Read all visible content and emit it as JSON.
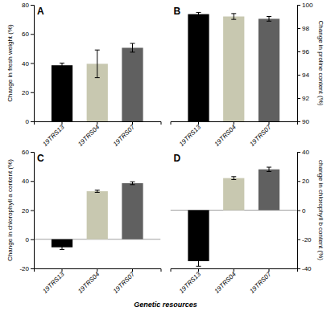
{
  "chart_data": [
    {
      "type": "bar",
      "title": "A",
      "categories": [
        "19TRS13",
        "19TRS04",
        "19TRS07"
      ],
      "values": [
        38.5,
        39.5,
        50.5
      ],
      "errors": [
        1.5,
        9.5,
        3.0
      ],
      "colors": [
        "#000000",
        "#c8c8b0",
        "#606060"
      ],
      "ylabel": "Change in fresh weight (%)",
      "ylim": [
        0,
        80
      ],
      "yticks": [
        0,
        20,
        40,
        60,
        80
      ],
      "grid": false
    },
    {
      "type": "bar",
      "title": "B",
      "categories": [
        "19TRS13",
        "19TRS04",
        "19TRS07"
      ],
      "values": [
        99.2,
        99.0,
        98.8
      ],
      "errors": [
        0.15,
        0.25,
        0.2
      ],
      "colors": [
        "#000000",
        "#c8c8b0",
        "#606060"
      ],
      "ylabel": "Change in proline content (%)",
      "ylim": [
        90,
        100
      ],
      "yticks": [
        90,
        92,
        94,
        96,
        98,
        100
      ],
      "grid": false
    },
    {
      "type": "bar",
      "title": "C",
      "categories": [
        "19TRS13",
        "19TRS04",
        "19TRS07"
      ],
      "values": [
        -5.5,
        33.0,
        38.5
      ],
      "errors": [
        1.5,
        0.8,
        1.0
      ],
      "colors": [
        "#000000",
        "#c8c8b0",
        "#606060"
      ],
      "ylabel": "Change in chlorophyll a content (%)",
      "xlabel": "Genetic resources",
      "ylim": [
        -20,
        60
      ],
      "yticks": [
        -20,
        0,
        20,
        40,
        60
      ],
      "grid": false
    },
    {
      "type": "bar",
      "title": "D",
      "categories": [
        "19TRS13",
        "19TRS04",
        "19TRS07"
      ],
      "values": [
        -35.0,
        22.0,
        28.0
      ],
      "errors": [
        3.5,
        1.0,
        1.5
      ],
      "colors": [
        "#000000",
        "#c8c8b0",
        "#606060"
      ],
      "ylabel": "change in chlorophyll b content (%)",
      "ylim": [
        -40,
        40
      ],
      "yticks": [
        -40,
        -20,
        0,
        20,
        40
      ],
      "grid": false
    }
  ]
}
